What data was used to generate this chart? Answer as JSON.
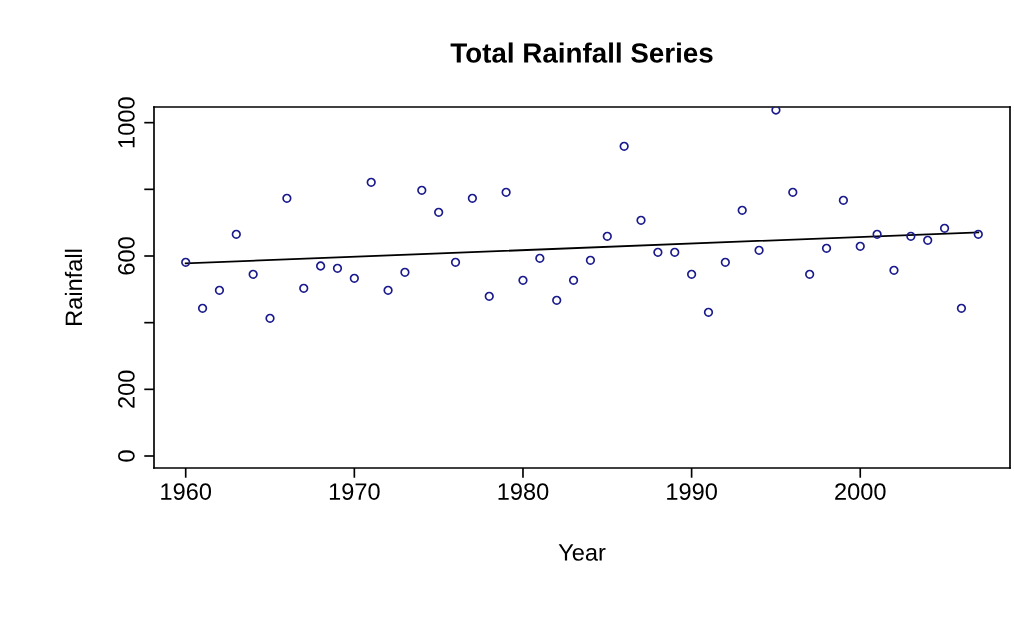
{
  "chart_data": {
    "type": "scatter",
    "title": "Total Rainfall Series",
    "xlabel": "Year",
    "ylabel": "Rainfall",
    "xlim": [
      1958.12,
      2008.88
    ],
    "xticks": [
      1960,
      1970,
      1980,
      1990,
      2000
    ],
    "ylim": [
      -36,
      1047
    ],
    "yticks": [
      0,
      200,
      {
        "value": 400,
        "label": null
      },
      600,
      {
        "value": 800,
        "label": null
      },
      1000
    ],
    "grid": false,
    "legend": false,
    "series": [
      {
        "marker": "circle",
        "color": "#1a1a8c",
        "x": [
          1960,
          1961,
          1962,
          1963,
          1964,
          1965,
          1966,
          1967,
          1968,
          1969,
          1970,
          1971,
          1972,
          1973,
          1974,
          1975,
          1976,
          1977,
          1978,
          1979,
          1980,
          1981,
          1982,
          1983,
          1984,
          1985,
          1986,
          1987,
          1988,
          1989,
          1990,
          1991,
          1992,
          1993,
          1994,
          1995,
          1996,
          1997,
          1998,
          1999,
          2000,
          2001,
          2002,
          2003,
          2004,
          2005,
          2006,
          2007
        ],
        "values": [
          581,
          443,
          497,
          665,
          545,
          413,
          773,
          503,
          570,
          563,
          533,
          821,
          497,
          551,
          797,
          731,
          581,
          773,
          479,
          791,
          527,
          593,
          467,
          527,
          587,
          659,
          929,
          707,
          611,
          611,
          545,
          431,
          581,
          737,
          617,
          1038,
          791,
          545,
          623,
          767,
          629,
          665,
          557,
          659,
          647,
          683,
          443,
          665
        ]
      },
      {
        "type": "line",
        "marker": "none",
        "color": "#000000",
        "x": [
          1960,
          2007
        ],
        "values": [
          578,
          671
        ]
      }
    ]
  }
}
